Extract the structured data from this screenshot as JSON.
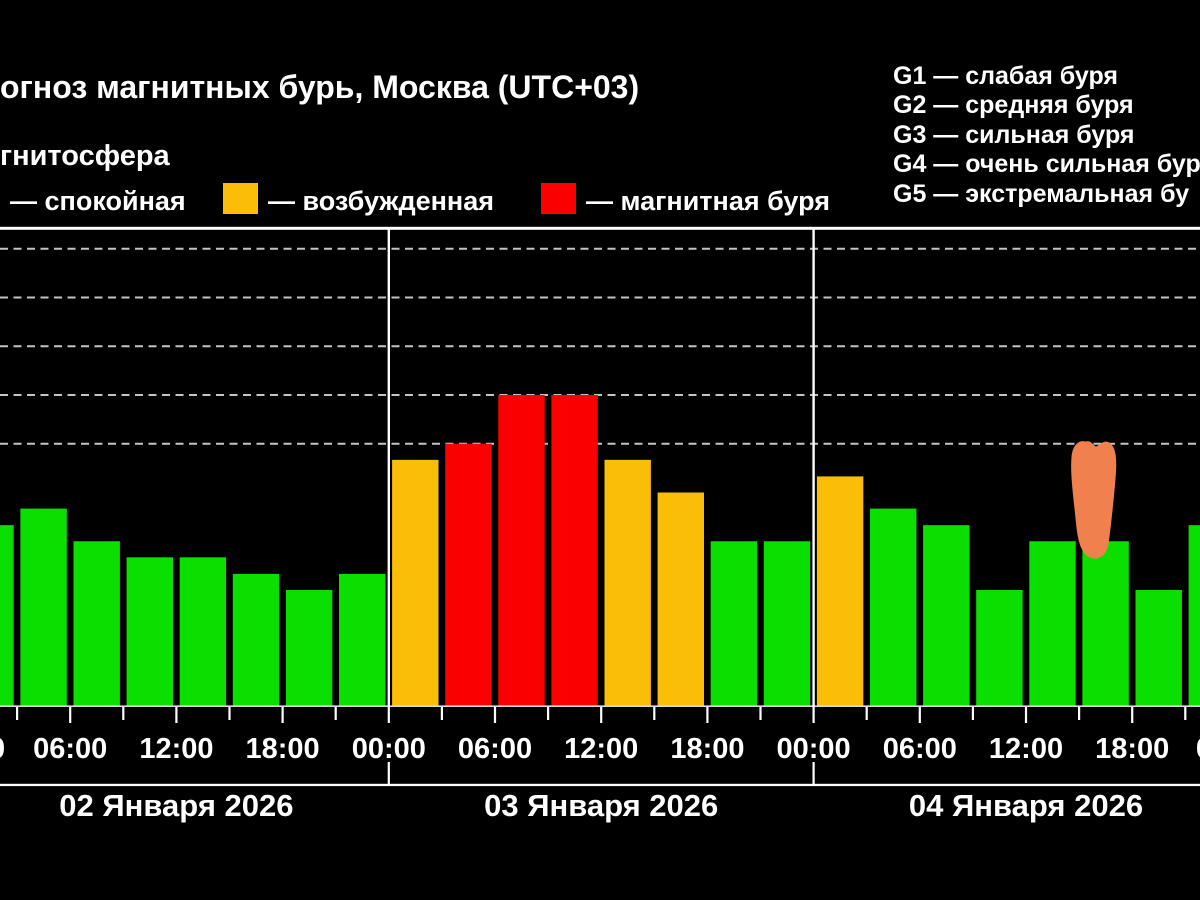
{
  "header": {
    "title": "огноз магнитных бурь, Москва (UTC+03)",
    "subtitle": "гнитосфера"
  },
  "legend": {
    "items": [
      {
        "label": "— спокойная",
        "status": "calm",
        "color": "#0ADF00",
        "swatch_visible": false
      },
      {
        "label": "— возбужденная",
        "status": "excited",
        "color": "#FBBE08",
        "swatch_visible": true
      },
      {
        "label": "— магнитная буря",
        "status": "storm",
        "color": "#FB0000",
        "swatch_visible": true
      }
    ]
  },
  "g_scale": {
    "items": [
      "G1 — слабая буря",
      "G2 — средняя буря",
      "G3 — сильная буря",
      "G4 — очень сильная бур",
      "G5 — экстремальная бу"
    ]
  },
  "chart_data": {
    "type": "bar",
    "y_unit": "Kp index (estimated from storm-level gridlines)",
    "bar_interval_hours": 3,
    "grid": {
      "dashed_levels_kp": [
        5,
        6,
        7,
        8,
        9
      ],
      "g_labels": [
        "G1",
        "G2",
        "G3",
        "G4",
        "G5"
      ],
      "grid_on": true,
      "legend_position": "top-right"
    },
    "x_tick_labels_per_day": [
      "00:00",
      "06:00",
      "12:00",
      "18:00"
    ],
    "days": [
      {
        "date": "02 Января 2026",
        "values": [
          3.33,
          3.67,
          3.0,
          2.67,
          2.67,
          2.33,
          2.0,
          2.33
        ],
        "statuses": [
          "calm",
          "calm",
          "calm",
          "calm",
          "calm",
          "calm",
          "calm",
          "calm"
        ]
      },
      {
        "date": "03 Января 2026",
        "values": [
          4.67,
          5.0,
          6.0,
          6.0,
          4.67,
          4.0,
          3.0,
          3.0
        ],
        "statuses": [
          "excited",
          "storm",
          "storm",
          "storm",
          "excited",
          "excited",
          "calm",
          "calm"
        ]
      },
      {
        "date": "04 Января 2026",
        "values": [
          4.33,
          3.67,
          3.33,
          2.0,
          3.0,
          3.0,
          2.0,
          3.33
        ],
        "statuses": [
          "excited",
          "calm",
          "calm",
          "calm",
          "calm",
          "calm",
          "calm",
          "calm"
        ]
      }
    ],
    "status_colors": {
      "calm": "#0ADF00",
      "excited": "#FBBE08",
      "storm": "#FB0000"
    },
    "annotation": {
      "type": "hand_drawn_highlight",
      "color": "#F0814F",
      "marks": "бар 15:00–18:00, 04 Января 2026"
    }
  }
}
